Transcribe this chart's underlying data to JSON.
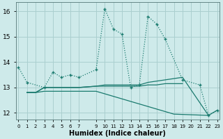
{
  "xlabel": "Humidex (Indice chaleur)",
  "background_color": "#ceeaea",
  "grid_color": "#aacfcf",
  "line_color": "#1a7a6e",
  "series1_x": [
    0,
    1,
    3,
    4,
    5,
    6,
    7,
    9,
    10,
    11,
    12,
    13,
    14,
    15,
    16,
    17,
    19,
    21,
    22,
    23
  ],
  "series1_y": [
    13.8,
    13.2,
    13.0,
    13.6,
    13.4,
    13.5,
    13.4,
    13.7,
    16.1,
    15.3,
    15.1,
    13.0,
    13.1,
    15.8,
    15.5,
    14.9,
    13.3,
    13.1,
    11.9,
    12.1
  ],
  "series2_x": [
    1,
    2,
    3,
    4,
    5,
    6,
    7,
    9,
    10,
    11,
    12,
    13,
    14,
    15,
    16,
    17,
    18,
    19,
    22
  ],
  "series2_y": [
    12.8,
    12.8,
    13.0,
    13.0,
    13.0,
    13.0,
    13.0,
    13.05,
    13.1,
    13.1,
    13.1,
    13.1,
    13.1,
    13.2,
    13.25,
    13.3,
    13.35,
    13.4,
    11.9
  ],
  "series3_x": [
    1,
    2,
    3,
    4,
    5,
    6,
    7,
    9,
    10,
    11,
    12,
    13,
    14,
    15,
    16,
    17,
    18,
    19
  ],
  "series3_y": [
    12.8,
    12.8,
    13.0,
    13.0,
    13.0,
    13.0,
    13.0,
    13.05,
    13.05,
    13.05,
    13.05,
    13.05,
    13.05,
    13.1,
    13.1,
    13.15,
    13.15,
    13.15
  ],
  "series4_x": [
    1,
    2,
    3,
    4,
    5,
    6,
    7,
    9,
    10,
    11,
    12,
    13,
    14,
    15,
    16,
    17,
    18,
    22,
    23
  ],
  "series4_y": [
    12.8,
    12.8,
    12.85,
    12.85,
    12.85,
    12.85,
    12.85,
    12.85,
    12.75,
    12.65,
    12.55,
    12.45,
    12.35,
    12.25,
    12.15,
    12.05,
    11.95,
    11.9,
    12.1
  ],
  "ylim": [
    11.75,
    16.35
  ],
  "yticks": [
    12,
    13,
    14,
    15,
    16
  ],
  "xticks": [
    0,
    1,
    2,
    3,
    4,
    5,
    6,
    7,
    9,
    10,
    11,
    12,
    13,
    14,
    15,
    16,
    17,
    18,
    19,
    20,
    21,
    22,
    23
  ]
}
